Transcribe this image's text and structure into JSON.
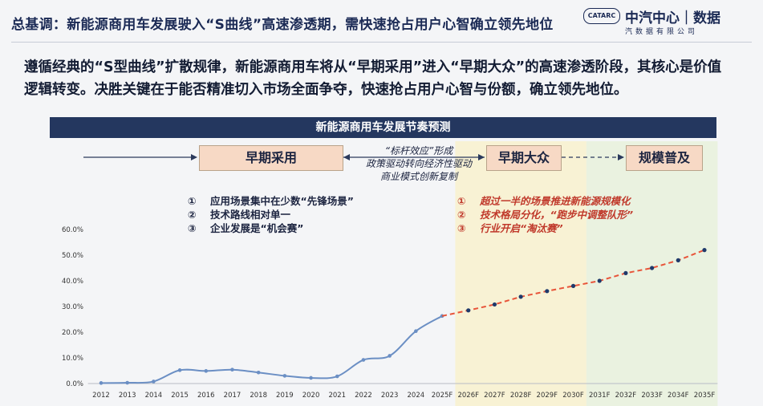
{
  "header": {
    "title": "总基调：新能源商用车发展驶入“S曲线”高速渗透期，需快速抢占用户心智确立领先地位",
    "logo_badge": "CATARC",
    "logo_name": "中汽中心｜数据",
    "logo_sub": "汽数据有限公司"
  },
  "intro": "遵循经典的“S型曲线”扩散规律，新能源商用车将从“早期采用”进入“早期大众”的高速渗透阶段，其核心是价值逻辑转变。决胜关键在于能否精准切入市场全面争夺，快速抢占用户心智与份额，确立领先地位。",
  "stages": {
    "early": "早期采用",
    "mid": "早期大众",
    "scale": "规模普及",
    "transition": [
      "“标杆效应”形成",
      "政策驱动转向经济性驱动",
      "商业模式创新复制"
    ]
  },
  "features": {
    "left": [
      {
        "num": "①",
        "text": "应用场景集中在少数“先锋场景”"
      },
      {
        "num": "②",
        "text": "技术路线相对单一"
      },
      {
        "num": "③",
        "text": "企业发展是“机会赛”"
      }
    ],
    "right": [
      {
        "num": "①",
        "text": "超过一半的场景推进新能源规模化"
      },
      {
        "num": "②",
        "text": "技术格局分化，“跑步中调整队形”"
      },
      {
        "num": "③",
        "text": "行业开启“淘汰赛”"
      }
    ]
  },
  "colors": {
    "actual_line": "#6b8fc4",
    "forecast_line": "#e8553a",
    "marker": "#1f3a6b",
    "zone_mid": "#f8f1d2",
    "zone_scale": "#e9f1de",
    "banner": "#24375f"
  },
  "chart_data": {
    "type": "line",
    "title": "新能源商用车发展节奏预测",
    "categories": [
      "2012",
      "2013",
      "2014",
      "2015",
      "2016",
      "2017",
      "2018",
      "2019",
      "2020",
      "2021",
      "2022",
      "2023",
      "2024",
      "2025F",
      "2026F",
      "2027F",
      "2028F",
      "2029F",
      "2030F",
      "2031F",
      "2032F",
      "2033F",
      "2034F",
      "2035F"
    ],
    "series": [
      {
        "values": [
          0.2,
          0.3,
          0.8,
          5.2,
          4.9,
          5.4,
          4.3,
          3.0,
          2.2,
          2.8,
          9.2,
          10.8,
          20.4,
          26.3,
          null,
          null,
          null,
          null,
          null,
          null,
          null,
          null,
          null,
          null
        ]
      },
      {
        "values": [
          null,
          null,
          null,
          null,
          null,
          null,
          null,
          null,
          null,
          null,
          null,
          null,
          null,
          26.3,
          28.5,
          30.8,
          33.8,
          36.0,
          38.0,
          40.0,
          43.0,
          45.0,
          48.0,
          52.0
        ]
      }
    ],
    "y_ticks": [
      "0.0%",
      "10.0%",
      "20.0%",
      "30.0%",
      "40.0%",
      "50.0%",
      "60.0%"
    ],
    "ylim": [
      0,
      60
    ],
    "grid": false,
    "forecast_zones": [
      {
        "from": "2026F",
        "to": "2030F"
      },
      {
        "from": "2031F",
        "to": "2035F"
      }
    ]
  }
}
